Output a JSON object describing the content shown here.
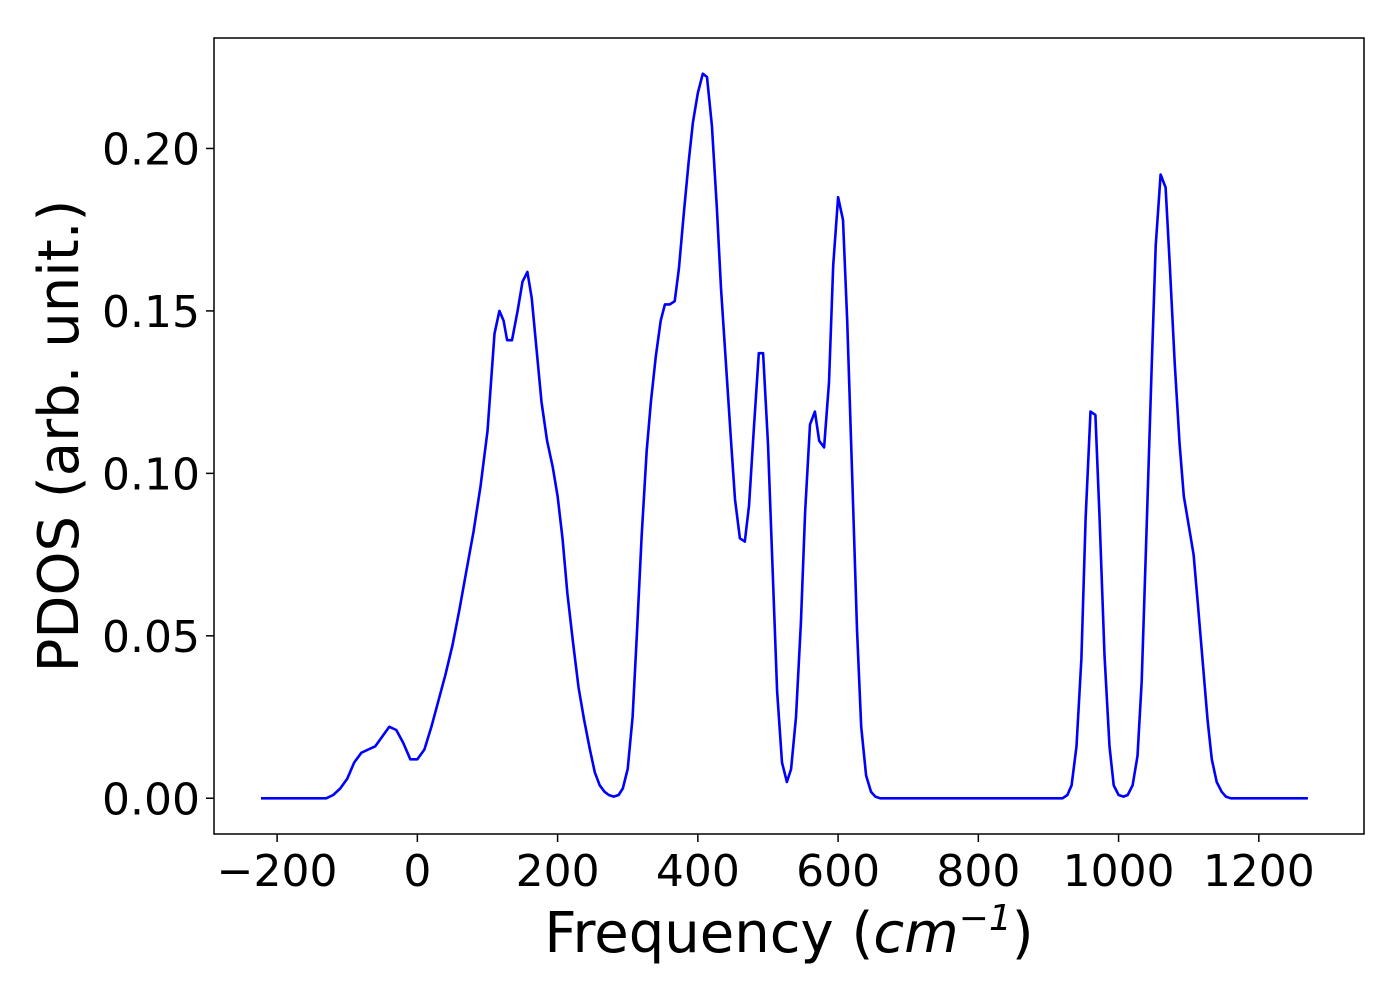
{
  "chart_data": {
    "type": "line",
    "title": "",
    "xlabel": "Frequency (",
    "xlabel_math": "cm",
    "xlabel_sup": "−1",
    "xlabel_close": ")",
    "ylabel": "PDOS (arb. unit.)",
    "xlim": [
      -290,
      1350
    ],
    "ylim": [
      -0.011,
      0.234
    ],
    "grid": false,
    "legend": "none",
    "x_ticks": [
      {
        "value": -200,
        "label": "−200"
      },
      {
        "value": 0,
        "label": "0"
      },
      {
        "value": 200,
        "label": "200"
      },
      {
        "value": 400,
        "label": "400"
      },
      {
        "value": 600,
        "label": "600"
      },
      {
        "value": 800,
        "label": "800"
      },
      {
        "value": 1000,
        "label": "1000"
      },
      {
        "value": 1200,
        "label": "1200"
      }
    ],
    "y_ticks": [
      {
        "value": 0.0,
        "label": "0.00"
      },
      {
        "value": 0.05,
        "label": "0.05"
      },
      {
        "value": 0.1,
        "label": "0.10"
      },
      {
        "value": 0.15,
        "label": "0.15"
      },
      {
        "value": 0.2,
        "label": "0.20"
      }
    ],
    "series": [
      {
        "color": "#0000ff",
        "points": [
          [
            -223,
            0.0
          ],
          [
            -200,
            0.0
          ],
          [
            -160,
            0.0
          ],
          [
            -130,
            0.0
          ],
          [
            -120,
            0.001
          ],
          [
            -110,
            0.003
          ],
          [
            -100,
            0.006
          ],
          [
            -90,
            0.011
          ],
          [
            -80,
            0.014
          ],
          [
            -70,
            0.015
          ],
          [
            -60,
            0.016
          ],
          [
            -50,
            0.019
          ],
          [
            -40,
            0.022
          ],
          [
            -30,
            0.021
          ],
          [
            -20,
            0.017
          ],
          [
            -10,
            0.012
          ],
          [
            0,
            0.012
          ],
          [
            10,
            0.015
          ],
          [
            20,
            0.022
          ],
          [
            30,
            0.03
          ],
          [
            40,
            0.038
          ],
          [
            50,
            0.047
          ],
          [
            60,
            0.058
          ],
          [
            70,
            0.07
          ],
          [
            80,
            0.082
          ],
          [
            90,
            0.096
          ],
          [
            100,
            0.113
          ],
          [
            105,
            0.128
          ],
          [
            110,
            0.143
          ],
          [
            117,
            0.15
          ],
          [
            123,
            0.147
          ],
          [
            128,
            0.141
          ],
          [
            135,
            0.141
          ],
          [
            143,
            0.15
          ],
          [
            150,
            0.159
          ],
          [
            157,
            0.162
          ],
          [
            163,
            0.154
          ],
          [
            170,
            0.138
          ],
          [
            177,
            0.122
          ],
          [
            185,
            0.11
          ],
          [
            193,
            0.102
          ],
          [
            200,
            0.093
          ],
          [
            207,
            0.08
          ],
          [
            214,
            0.063
          ],
          [
            222,
            0.048
          ],
          [
            230,
            0.034
          ],
          [
            238,
            0.024
          ],
          [
            246,
            0.015
          ],
          [
            253,
            0.008
          ],
          [
            260,
            0.004
          ],
          [
            267,
            0.002
          ],
          [
            273,
            0.001
          ],
          [
            280,
            0.0005
          ],
          [
            287,
            0.001
          ],
          [
            293,
            0.003
          ],
          [
            300,
            0.009
          ],
          [
            307,
            0.025
          ],
          [
            313,
            0.05
          ],
          [
            320,
            0.081
          ],
          [
            327,
            0.107
          ],
          [
            333,
            0.122
          ],
          [
            340,
            0.136
          ],
          [
            347,
            0.147
          ],
          [
            353,
            0.152
          ],
          [
            360,
            0.152
          ],
          [
            367,
            0.153
          ],
          [
            373,
            0.163
          ],
          [
            380,
            0.18
          ],
          [
            387,
            0.196
          ],
          [
            393,
            0.208
          ],
          [
            400,
            0.217
          ],
          [
            407,
            0.223
          ],
          [
            413,
            0.222
          ],
          [
            420,
            0.207
          ],
          [
            427,
            0.182
          ],
          [
            433,
            0.157
          ],
          [
            440,
            0.134
          ],
          [
            447,
            0.111
          ],
          [
            453,
            0.092
          ],
          [
            460,
            0.08
          ],
          [
            467,
            0.079
          ],
          [
            473,
            0.09
          ],
          [
            480,
            0.114
          ],
          [
            487,
            0.137
          ],
          [
            493,
            0.137
          ],
          [
            500,
            0.109
          ],
          [
            507,
            0.068
          ],
          [
            513,
            0.033
          ],
          [
            520,
            0.011
          ],
          [
            527,
            0.005
          ],
          [
            533,
            0.009
          ],
          [
            540,
            0.025
          ],
          [
            547,
            0.054
          ],
          [
            553,
            0.088
          ],
          [
            560,
            0.115
          ],
          [
            567,
            0.119
          ],
          [
            573,
            0.11
          ],
          [
            580,
            0.108
          ],
          [
            587,
            0.128
          ],
          [
            593,
            0.164
          ],
          [
            600,
            0.185
          ],
          [
            607,
            0.178
          ],
          [
            613,
            0.147
          ],
          [
            620,
            0.1
          ],
          [
            627,
            0.052
          ],
          [
            633,
            0.022
          ],
          [
            640,
            0.007
          ],
          [
            647,
            0.002
          ],
          [
            653,
            0.0005
          ],
          [
            660,
            0.0
          ],
          [
            700,
            0.0
          ],
          [
            800,
            0.0
          ],
          [
            900,
            0.0
          ],
          [
            920,
            0.0
          ],
          [
            927,
            0.001
          ],
          [
            933,
            0.004
          ],
          [
            940,
            0.016
          ],
          [
            947,
            0.043
          ],
          [
            953,
            0.086
          ],
          [
            960,
            0.119
          ],
          [
            967,
            0.118
          ],
          [
            973,
            0.086
          ],
          [
            980,
            0.044
          ],
          [
            987,
            0.016
          ],
          [
            993,
            0.004
          ],
          [
            1000,
            0.001
          ],
          [
            1007,
            0.0005
          ],
          [
            1013,
            0.001
          ],
          [
            1020,
            0.004
          ],
          [
            1027,
            0.013
          ],
          [
            1033,
            0.036
          ],
          [
            1040,
            0.083
          ],
          [
            1047,
            0.131
          ],
          [
            1053,
            0.17
          ],
          [
            1060,
            0.192
          ],
          [
            1067,
            0.188
          ],
          [
            1073,
            0.164
          ],
          [
            1080,
            0.134
          ],
          [
            1087,
            0.109
          ],
          [
            1093,
            0.093
          ],
          [
            1100,
            0.084
          ],
          [
            1107,
            0.075
          ],
          [
            1113,
            0.06
          ],
          [
            1120,
            0.042
          ],
          [
            1127,
            0.024
          ],
          [
            1133,
            0.012
          ],
          [
            1140,
            0.005
          ],
          [
            1147,
            0.002
          ],
          [
            1153,
            0.0005
          ],
          [
            1160,
            0.0
          ],
          [
            1200,
            0.0
          ],
          [
            1240,
            0.0
          ],
          [
            1270,
            0.0
          ]
        ]
      }
    ]
  }
}
